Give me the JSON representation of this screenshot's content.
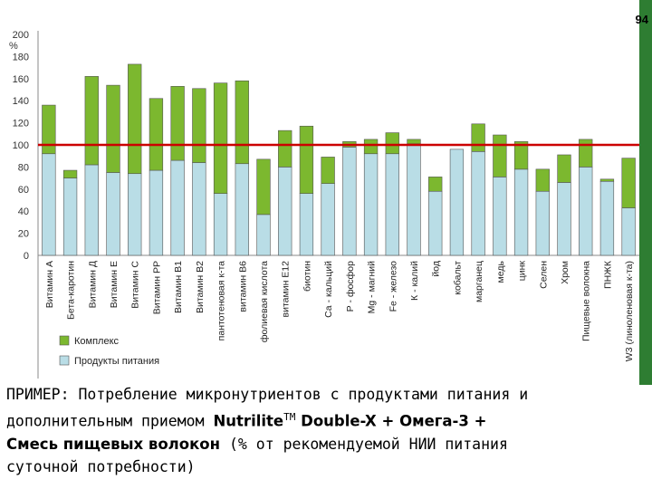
{
  "page_number": "94",
  "chart_data": {
    "type": "stacked-bar",
    "y_unit": "%",
    "ylim": [
      0,
      200
    ],
    "y_ticks": [
      "0",
      "20",
      "40",
      "60",
      "80",
      "100",
      "120",
      "140",
      "160",
      "180",
      "200"
    ],
    "reference_line": 100,
    "reference_color": "#cc0000",
    "categories": [
      "Витамин А",
      "Бета-каротин",
      "Витамин Д",
      "Витамин Е",
      "Витамин С",
      "Витамин РР",
      "Витамин В1",
      "Витамин В2",
      "пантотеновая к-та",
      "витамин В6",
      "фолиевая кислота",
      "витамин Е12",
      "биотин",
      "Са - кальций",
      "Р - фосфор",
      "Mg - магний",
      "Fe - железо",
      "К - калий",
      "йод",
      "кобальт",
      "марганец",
      "медь",
      "цинк",
      "Селен",
      "Хром",
      "Пищевые волокна",
      "ПНЖК",
      "W3 (линоленовая к-та)"
    ],
    "series": [
      {
        "name": "Продукты питания",
        "color": "#b9dde6",
        "values": [
          92,
          70,
          82,
          75,
          74,
          77,
          86,
          84,
          56,
          83,
          37,
          80,
          56,
          65,
          98,
          92,
          92,
          101,
          58,
          96,
          94,
          71,
          78,
          58,
          66,
          80,
          67,
          43
        ]
      },
      {
        "name": "Комплекс",
        "color": "#7cb82f",
        "values": [
          44,
          7,
          80,
          79,
          99,
          65,
          67,
          67,
          100,
          75,
          50,
          33,
          61,
          24,
          5,
          13,
          19,
          4,
          13,
          0,
          25,
          38,
          25,
          20,
          25,
          25,
          2,
          45
        ]
      }
    ],
    "legend": [
      "Комплекс",
      "Продукты питания"
    ],
    "legend_position": "bottom-left"
  },
  "caption": {
    "line1": "ПРИМЕР: Потребление микронутриентов с продуктами питания и",
    "line2_pre": "дополнительным приемом ",
    "line2_bold": "Nutrilite",
    "line2_sup": "TM",
    "line2_bold2": " Double-X + Омега-3 +",
    "line3_bold": "Смесь пищевых волокон",
    "line3_rest": " (% от рекомендуемой НИИ питания",
    "line4": "суточной потребности)"
  }
}
